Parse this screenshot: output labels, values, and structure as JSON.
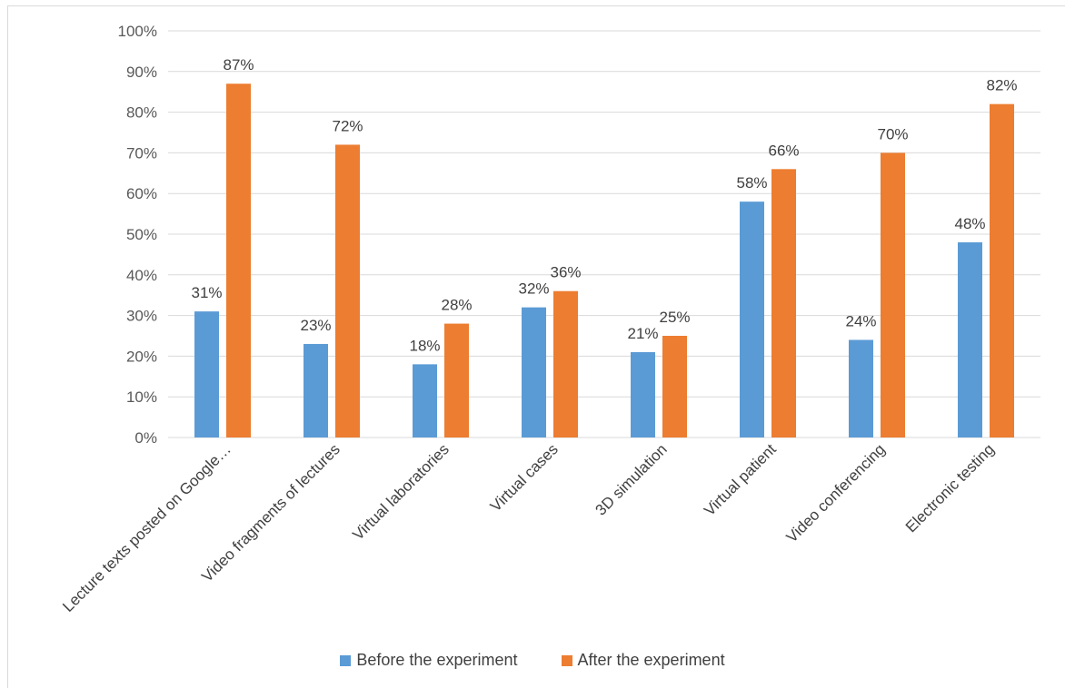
{
  "chart_data": {
    "type": "bar",
    "categories": [
      "Lecture texts posted on Google…",
      "Video fragments of lectures",
      "Virtual laboratories",
      "Virtual cases",
      "3D simulation",
      "Virtual patient",
      "Video conferencing",
      "Electronic testing"
    ],
    "series": [
      {
        "name": "Before the experiment",
        "color": "#5b9bd5",
        "values": [
          31,
          23,
          18,
          32,
          21,
          58,
          24,
          48
        ]
      },
      {
        "name": "After the experiment",
        "color": "#ed7d31",
        "values": [
          87,
          72,
          28,
          36,
          25,
          66,
          70,
          82
        ]
      }
    ],
    "y_ticks": [
      "0%",
      "10%",
      "20%",
      "30%",
      "40%",
      "50%",
      "60%",
      "70%",
      "80%",
      "90%",
      "100%"
    ],
    "ylim": [
      0,
      100
    ],
    "unit": "%",
    "grid": true,
    "legend_position": "bottom"
  }
}
